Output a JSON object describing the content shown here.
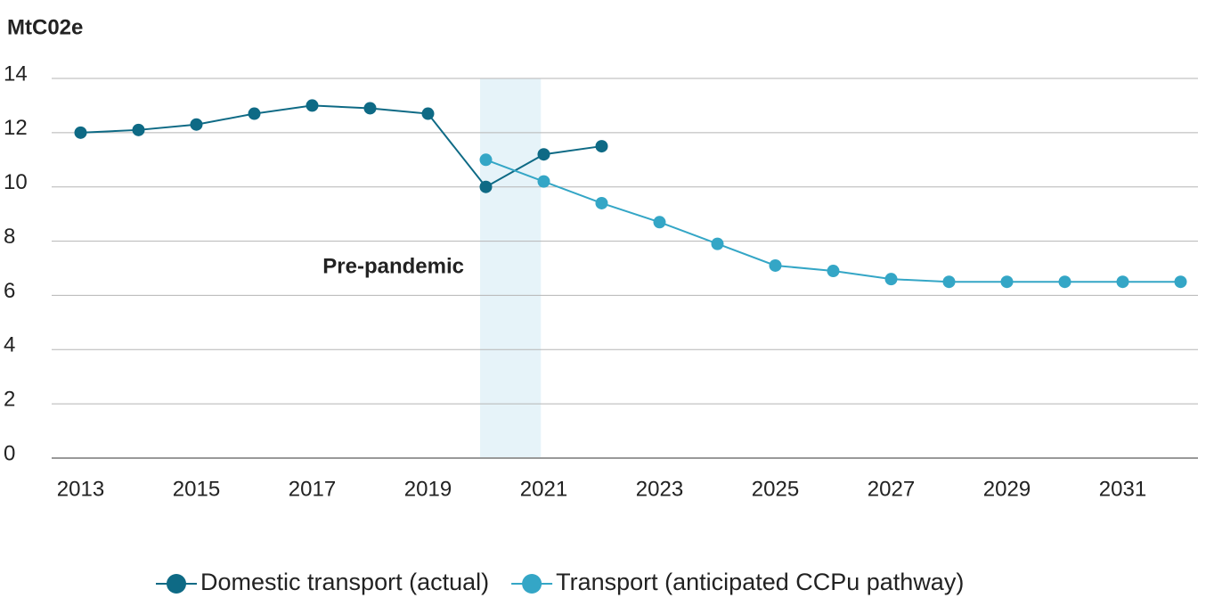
{
  "chart_data": {
    "type": "line",
    "y_axis_label": "MtC02e",
    "xlim": [
      2012.5,
      2032.3
    ],
    "xticks": [
      2013,
      2015,
      2017,
      2019,
      2021,
      2023,
      2025,
      2027,
      2029,
      2031
    ],
    "ylim": [
      0,
      14
    ],
    "yticks": [
      0,
      2,
      4,
      6,
      8,
      10,
      12,
      14
    ],
    "grid": true,
    "legend": "bottom",
    "highlight": {
      "x": [
        2019.9,
        2020.95
      ],
      "label": "Pre-pandemic",
      "color": "#e6f3f9"
    },
    "series": [
      {
        "name": "Domestic transport (actual)",
        "color": "#0e6a85",
        "x": [
          2013,
          2014,
          2015,
          2016,
          2017,
          2018,
          2019,
          2020,
          2021,
          2022
        ],
        "values": [
          12,
          12.1,
          12.3,
          12.7,
          13,
          12.9,
          12.7,
          10,
          11.2,
          11.5
        ]
      },
      {
        "name": "Transport (anticipated CCPu pathway)",
        "color": "#34a6c6",
        "x": [
          2020,
          2021,
          2022,
          2023,
          2024,
          2025,
          2026,
          2027,
          2028,
          2029,
          2030,
          2031,
          2032
        ],
        "values": [
          11,
          10.2,
          9.4,
          8.7,
          7.9,
          7.1,
          6.9,
          6.6,
          6.5,
          6.5,
          6.5,
          6.5,
          6.5
        ]
      }
    ]
  }
}
